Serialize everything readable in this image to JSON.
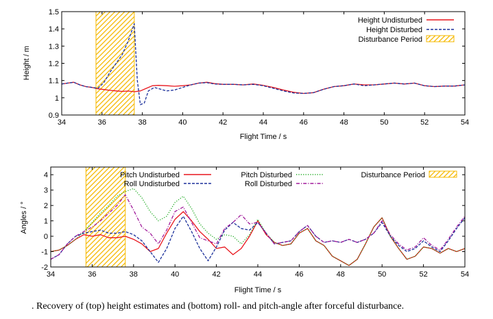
{
  "caption": ". Recovery of (top) height estimates and (bottom) roll- and pitch-angle after forceful disturbance.",
  "colors": {
    "red": "#e8141b",
    "blue": "#1a2f9a",
    "green": "#19a91c",
    "purple": "#a0199a",
    "hatch": "#f5b800"
  },
  "chart_data": [
    {
      "type": "line",
      "title": "",
      "xlabel": "Flight Time / s",
      "ylabel": "Height / m",
      "xlim": [
        34,
        54
      ],
      "ylim": [
        0.9,
        1.5
      ],
      "xticks": [
        "34",
        "36",
        "38",
        "40",
        "42",
        "44",
        "46",
        "48",
        "50",
        "52",
        "54"
      ],
      "yticks": [
        "0.9",
        "1",
        "1.1",
        "1.2",
        "1.3",
        "1.4",
        "1.5"
      ],
      "legend_position": "top-right",
      "disturbance_period": {
        "name": "Disturbance Period",
        "x": [
          35.7,
          37.6
        ]
      },
      "series": [
        {
          "name": "Height Undisturbed",
          "style": "solid",
          "color": "#e8141b",
          "x": [
            34,
            34.3,
            34.6,
            34.9,
            35.2,
            35.5,
            35.8,
            36.1,
            36.4,
            36.7,
            37.0,
            37.3,
            37.6,
            37.9,
            38.2,
            38.5,
            38.8,
            39.2,
            39.6,
            40.0,
            40.4,
            40.8,
            41.2,
            41.6,
            42.0,
            42.5,
            43.0,
            43.5,
            44.0,
            44.5,
            45.0,
            45.5,
            46.0,
            46.5,
            47.0,
            47.5,
            48.0,
            48.5,
            49.0,
            49.5,
            50.0,
            50.5,
            51.0,
            51.5,
            52.0,
            52.5,
            53.0,
            53.5,
            54.0
          ],
          "y": [
            1.08,
            1.085,
            1.09,
            1.075,
            1.065,
            1.06,
            1.052,
            1.048,
            1.043,
            1.04,
            1.037,
            1.039,
            1.035,
            1.04,
            1.055,
            1.07,
            1.072,
            1.07,
            1.067,
            1.07,
            1.075,
            1.085,
            1.09,
            1.082,
            1.078,
            1.078,
            1.075,
            1.08,
            1.072,
            1.06,
            1.045,
            1.032,
            1.025,
            1.03,
            1.05,
            1.065,
            1.07,
            1.08,
            1.075,
            1.075,
            1.08,
            1.085,
            1.08,
            1.085,
            1.07,
            1.065,
            1.068,
            1.068,
            1.075
          ]
        },
        {
          "name": "Height Disturbed",
          "style": "dashed",
          "color": "#1a2f9a",
          "x": [
            34,
            34.3,
            34.6,
            34.9,
            35.2,
            35.5,
            35.8,
            36.1,
            36.4,
            36.7,
            37.0,
            37.3,
            37.6,
            37.75,
            37.9,
            38.1,
            38.3,
            38.6,
            38.9,
            39.2,
            39.6,
            40.0,
            40.4,
            40.8,
            41.2,
            41.6,
            42.0,
            42.5,
            43.0,
            43.5,
            44.0,
            44.5,
            45.0,
            45.5,
            46.0,
            46.5,
            47.0,
            47.5,
            48.0,
            48.5,
            49.0,
            49.5,
            50.0,
            50.5,
            51.0,
            51.5,
            52.0,
            52.5,
            53.0,
            53.5,
            54.0
          ],
          "y": [
            1.08,
            1.085,
            1.09,
            1.075,
            1.065,
            1.06,
            1.055,
            1.09,
            1.15,
            1.2,
            1.25,
            1.33,
            1.43,
            1.1,
            0.96,
            0.97,
            1.04,
            1.06,
            1.05,
            1.04,
            1.045,
            1.06,
            1.075,
            1.085,
            1.088,
            1.08,
            1.078,
            1.078,
            1.075,
            1.078,
            1.07,
            1.055,
            1.04,
            1.028,
            1.025,
            1.03,
            1.05,
            1.065,
            1.07,
            1.08,
            1.07,
            1.075,
            1.08,
            1.085,
            1.08,
            1.085,
            1.07,
            1.065,
            1.068,
            1.068,
            1.075
          ]
        }
      ]
    },
    {
      "type": "line",
      "title": "",
      "xlabel": "Flight Time / s",
      "ylabel": "Angles / °",
      "xlim": [
        34,
        54
      ],
      "ylim": [
        -2,
        4.5
      ],
      "xticks": [
        "34",
        "36",
        "38",
        "40",
        "42",
        "44",
        "46",
        "48",
        "50",
        "52",
        "54"
      ],
      "yticks": [
        "-2",
        "-1",
        "0",
        "1",
        "2",
        "3",
        "4"
      ],
      "legend_position": "top",
      "disturbance_period": {
        "name": "Disturbance Period",
        "x": [
          35.7,
          37.6
        ]
      },
      "series": [
        {
          "name": "Pitch Undisturbed",
          "style": "solid",
          "color": "#e8141b",
          "x": [
            34,
            34.4,
            34.8,
            35.2,
            35.6,
            36.0,
            36.4,
            36.8,
            37.2,
            37.6,
            38.0,
            38.4,
            38.8,
            39.2,
            39.6,
            40.0,
            40.4,
            40.8,
            41.2,
            41.6,
            42.0,
            42.4,
            42.8,
            43.2,
            43.6,
            44.0,
            44.4,
            44.8,
            45.2,
            45.6,
            46.0,
            46.4,
            46.8,
            47.2,
            47.6,
            48.0,
            48.4,
            48.8,
            49.2,
            49.6,
            50.0,
            50.4,
            50.8,
            51.2,
            51.6,
            52.0,
            52.4,
            52.8,
            53.2,
            53.6,
            54.0
          ],
          "y": [
            -1.0,
            -0.9,
            -0.6,
            -0.2,
            0.1,
            0.0,
            0.1,
            -0.1,
            -0.1,
            0.0,
            -0.2,
            -0.5,
            -1.0,
            -0.8,
            0.2,
            1.1,
            1.6,
            1.0,
            0.3,
            -0.2,
            -0.8,
            -0.7,
            -1.2,
            -0.8,
            0.0,
            1.0,
            0.1,
            -0.4,
            -0.6,
            -0.5,
            0.2,
            0.5,
            -0.3,
            -0.6,
            -1.3,
            -1.6,
            -1.9,
            -1.5,
            -0.5,
            0.6,
            1.2,
            0.0,
            -0.8,
            -1.5,
            -1.3,
            -0.7,
            -0.8,
            -1.1,
            -0.8,
            -1.0,
            -0.8
          ]
        },
        {
          "name": "Roll Undisturbed",
          "style": "dashed",
          "color": "#1a2f9a",
          "x": [
            34,
            34.4,
            34.8,
            35.2,
            35.6,
            36.0,
            36.4,
            36.8,
            37.2,
            37.6,
            38.0,
            38.4,
            38.8,
            39.2,
            39.6,
            40.0,
            40.4,
            40.8,
            41.2,
            41.6,
            42.0,
            42.4,
            42.8,
            43.2,
            43.6,
            44.0,
            44.4,
            44.8,
            45.2,
            45.6,
            46.0,
            46.4,
            46.8,
            47.2,
            47.6,
            48.0,
            48.4,
            48.8,
            49.2,
            49.6,
            50.0,
            50.4,
            50.8,
            51.2,
            51.6,
            52.0,
            52.4,
            52.8,
            53.2,
            53.6,
            54.0
          ],
          "y": [
            -1.5,
            -1.2,
            -0.5,
            0.0,
            0.2,
            0.3,
            0.4,
            0.2,
            0.2,
            0.3,
            0.1,
            -0.3,
            -1.0,
            -1.7,
            -0.8,
            0.5,
            1.3,
            0.3,
            -0.8,
            -1.6,
            -0.7,
            0.4,
            0.9,
            0.5,
            0.4,
            0.9,
            0.2,
            -0.5,
            -0.4,
            -0.3,
            0.3,
            0.7,
            0.0,
            -0.4,
            -0.3,
            -0.4,
            -0.2,
            -0.4,
            -0.2,
            0.2,
            0.9,
            0.0,
            -0.6,
            -1.0,
            -0.8,
            -0.3,
            -0.7,
            -1.0,
            -0.3,
            0.5,
            1.2
          ]
        },
        {
          "name": "Pitch Disturbed",
          "style": "dotted",
          "color": "#19a91c",
          "x": [
            34,
            34.4,
            34.8,
            35.2,
            35.6,
            36.0,
            36.4,
            36.8,
            37.2,
            37.6,
            38.0,
            38.4,
            38.8,
            39.2,
            39.6,
            40.0,
            40.4,
            40.8,
            41.2,
            41.6,
            42.0,
            42.4,
            42.8,
            43.2,
            43.6,
            44.0,
            44.4,
            44.8,
            45.2,
            45.6,
            46.0,
            46.4,
            46.8,
            47.2,
            47.6,
            48.0,
            48.4,
            48.8,
            49.2,
            49.6,
            50.0,
            50.4,
            50.8,
            51.2,
            51.6,
            52.0,
            52.4,
            52.8,
            53.2,
            53.6,
            54.0
          ],
          "y": [
            -1.0,
            -0.9,
            -0.6,
            -0.2,
            0.3,
            0.9,
            1.5,
            2.0,
            2.6,
            2.9,
            3.1,
            2.5,
            1.6,
            1.0,
            1.3,
            2.2,
            2.6,
            1.8,
            0.8,
            0.2,
            -0.2,
            0.1,
            0.0,
            -0.5,
            0.1,
            1.1,
            0.2,
            -0.4,
            -0.6,
            -0.5,
            0.2,
            0.5,
            -0.3,
            -0.6,
            -1.3,
            -1.6,
            -1.9,
            -1.5,
            -0.5,
            0.6,
            1.2,
            0.0,
            -0.8,
            -1.5,
            -1.3,
            -0.7,
            -0.8,
            -1.1,
            -0.8,
            -1.0,
            -0.8
          ]
        },
        {
          "name": "Roll Disturbed",
          "style": "dash-dot",
          "color": "#a0199a",
          "x": [
            34,
            34.4,
            34.8,
            35.2,
            35.6,
            36.0,
            36.4,
            36.8,
            37.2,
            37.6,
            38.0,
            38.4,
            38.8,
            39.2,
            39.6,
            40.0,
            40.4,
            40.8,
            41.2,
            41.6,
            42.0,
            42.4,
            42.8,
            43.2,
            43.6,
            44.0,
            44.4,
            44.8,
            45.2,
            45.6,
            46.0,
            46.4,
            46.8,
            47.2,
            47.6,
            48.0,
            48.4,
            48.8,
            49.2,
            49.6,
            50.0,
            50.4,
            50.8,
            51.2,
            51.6,
            52.0,
            52.4,
            52.8,
            53.2,
            53.6,
            54.0
          ],
          "y": [
            -1.5,
            -1.2,
            -0.5,
            0.0,
            0.3,
            0.6,
            1.0,
            1.5,
            2.0,
            2.7,
            1.7,
            0.6,
            0.2,
            -0.5,
            0.4,
            1.6,
            1.9,
            0.9,
            -0.1,
            -0.3,
            -0.5,
            0.5,
            0.9,
            1.4,
            0.8,
            0.9,
            0.2,
            -0.5,
            -0.4,
            -0.3,
            0.3,
            0.7,
            0.0,
            -0.4,
            -0.3,
            -0.4,
            -0.2,
            -0.4,
            -0.2,
            0.2,
            1.0,
            0.1,
            -0.5,
            -0.9,
            -0.7,
            -0.1,
            -0.6,
            -0.9,
            -0.2,
            0.6,
            1.3
          ]
        }
      ]
    }
  ]
}
